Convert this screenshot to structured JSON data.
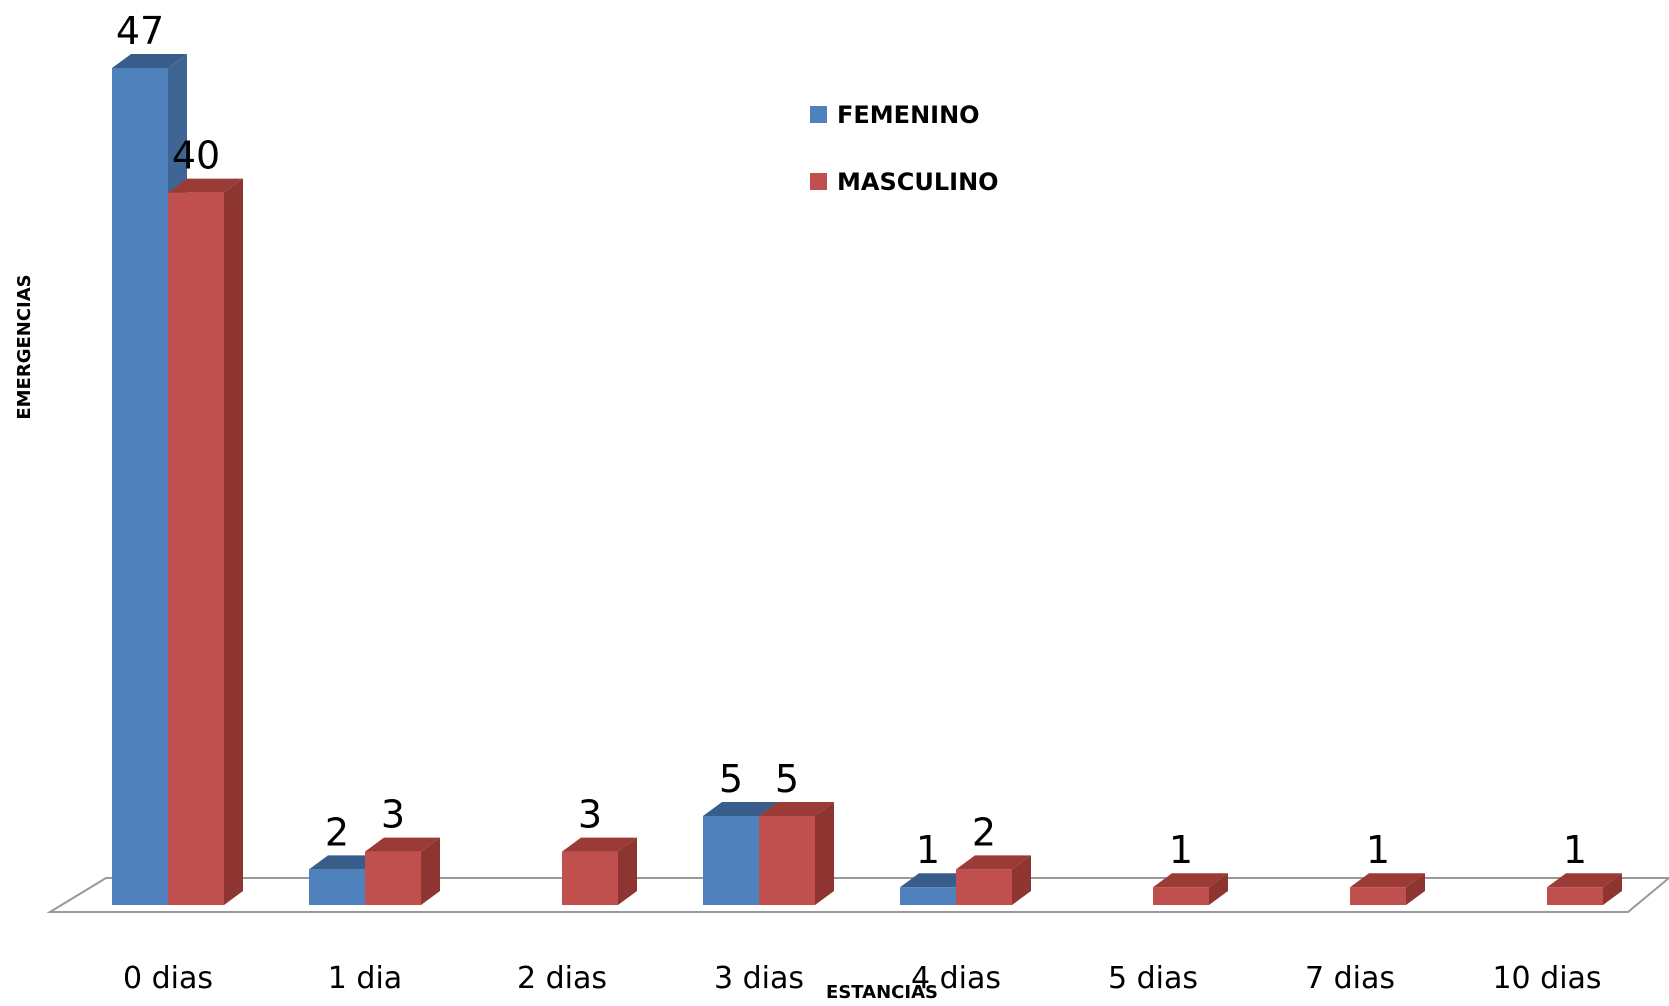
{
  "chart_data": {
    "type": "bar",
    "title": "",
    "xlabel": "ESTANCIAS",
    "ylabel": "EMERGENCIAS",
    "categories": [
      "0 dias",
      "1 dia",
      "2 dias",
      "3 dias",
      "4 dias",
      "5 dias",
      "7 dias",
      "10 dias"
    ],
    "series": [
      {
        "name": "FEMENINO",
        "color": "#4F81BD",
        "values": [
          47,
          2,
          null,
          5,
          1,
          null,
          null,
          null
        ]
      },
      {
        "name": "MASCULINO",
        "color": "#C0504D",
        "values": [
          40,
          3,
          3,
          5,
          2,
          1,
          1,
          1
        ]
      }
    ],
    "ylim": [
      0,
      47
    ],
    "grid": false,
    "legend_position": "top-center",
    "data_labels": true,
    "style": "3d-clustered-column"
  }
}
